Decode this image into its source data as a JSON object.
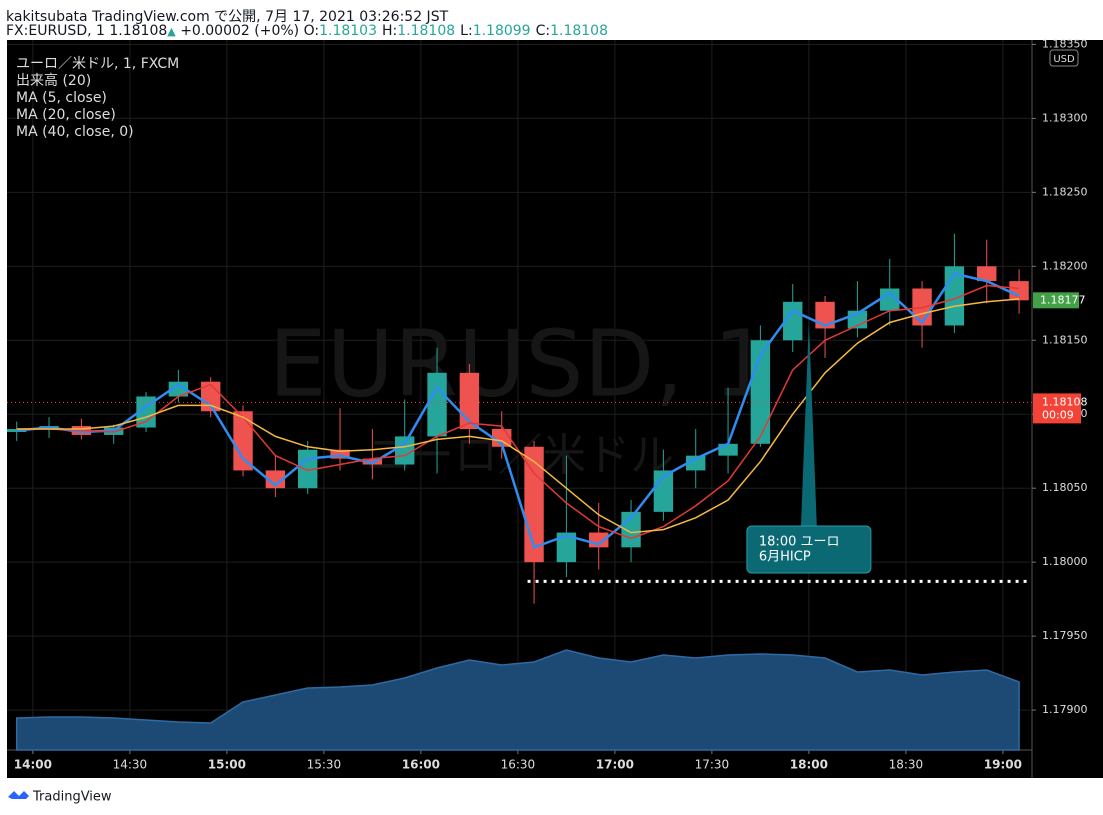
{
  "header": {
    "publisher": "kakitsubata TradingView.com で公開, 7月 17, 2021 03:26:52 JST",
    "symbol": "FX:EURUSD, 1",
    "last": "1.18108",
    "arrow": "▲",
    "change": "+0.00002 (+0%)",
    "ohlc": [
      {
        "key": "O:",
        "value": "1.18103"
      },
      {
        "key": "H:",
        "value": "1.18108"
      },
      {
        "key": "L:",
        "value": "1.18099"
      },
      {
        "key": "C:",
        "value": "1.18108"
      }
    ]
  },
  "footer": {
    "brand": "TradingView"
  },
  "chart_data": {
    "type": "candlestick",
    "legend_title": "ユーロ／米ドル, 1, FXCM",
    "watermark": [
      "EURUSD, 1",
      "ユーロ／米ドル"
    ],
    "currency": "USD",
    "x": [
      "13:55",
      "14:05",
      "14:15",
      "14:25",
      "14:35",
      "14:45",
      "14:55",
      "15:05",
      "15:15",
      "15:25",
      "15:35",
      "15:45",
      "15:55",
      "16:05",
      "16:15",
      "16:25",
      "16:35",
      "16:45",
      "16:55",
      "17:05",
      "17:15",
      "17:25",
      "17:35",
      "17:45",
      "17:55",
      "18:05",
      "18:15",
      "18:25",
      "18:35",
      "18:45",
      "18:55",
      "19:05"
    ],
    "xlim": [
      "13:52",
      "19:09"
    ],
    "xticks": [
      "14:00",
      "14:30",
      "15:00",
      "15:30",
      "16:00",
      "16:30",
      "17:00",
      "17:30",
      "18:00",
      "18:30",
      "19:00"
    ],
    "ylim": [
      1.17873,
      1.18353
    ],
    "yticks": [
      {
        "value": 1.179,
        "label": "1.17900"
      },
      {
        "value": 1.1795,
        "label": "1.17950"
      },
      {
        "value": 1.18,
        "label": "1.18000"
      },
      {
        "value": 1.1805,
        "label": "1.18050"
      },
      {
        "value": 1.181,
        "label": "1.18100"
      },
      {
        "value": 1.1815,
        "label": "1.18150"
      },
      {
        "value": 1.182,
        "label": "1.18200"
      },
      {
        "value": 1.1825,
        "label": "1.18250"
      },
      {
        "value": 1.183,
        "label": "1.18300"
      },
      {
        "value": 1.1835,
        "label": "1.18350"
      }
    ],
    "grid": true,
    "up_color": "#26a69a",
    "down_color": "#ef5350",
    "candles": {
      "open": [
        1.18088,
        1.1809,
        1.18092,
        1.18086,
        1.18091,
        1.18112,
        1.18122,
        1.18102,
        1.18062,
        1.1805,
        1.18076,
        1.1807,
        1.18066,
        1.18085,
        1.18128,
        1.1809,
        1.18078,
        1.18,
        1.1802,
        1.1801,
        1.18034,
        1.18062,
        1.18072,
        1.1808,
        1.1815,
        1.18176,
        1.18158,
        1.1817,
        1.18185,
        1.1816,
        1.182,
        1.1819
      ],
      "high": [
        1.18095,
        1.18098,
        1.18097,
        1.18093,
        1.18115,
        1.1813,
        1.18125,
        1.18106,
        1.18072,
        1.18082,
        1.18104,
        1.1809,
        1.1811,
        1.18145,
        1.18134,
        1.18102,
        1.18082,
        1.18072,
        1.1804,
        1.18042,
        1.18076,
        1.1809,
        1.18118,
        1.1816,
        1.18188,
        1.1818,
        1.1819,
        1.18205,
        1.1819,
        1.18222,
        1.18218,
        1.18198
      ],
      "low": [
        1.18082,
        1.18084,
        1.18083,
        1.1808,
        1.18088,
        1.18108,
        1.18098,
        1.18058,
        1.18044,
        1.18046,
        1.18062,
        1.18056,
        1.18062,
        1.1806,
        1.1808,
        1.1807,
        1.17972,
        1.1799,
        1.17995,
        1.18,
        1.18028,
        1.1805,
        1.1806,
        1.18078,
        1.18142,
        1.18138,
        1.18152,
        1.1816,
        1.18145,
        1.18155,
        1.18175,
        1.18168
      ],
      "close": [
        1.1809,
        1.18092,
        1.18086,
        1.18091,
        1.18112,
        1.18122,
        1.18102,
        1.18062,
        1.1805,
        1.18076,
        1.1807,
        1.18066,
        1.18085,
        1.18128,
        1.1809,
        1.18078,
        1.18,
        1.1802,
        1.1801,
        1.18034,
        1.18062,
        1.18072,
        1.1808,
        1.1815,
        1.18176,
        1.18158,
        1.1817,
        1.18185,
        1.1816,
        1.182,
        1.1819,
        1.18177
      ]
    },
    "volume": {
      "name": "出来高 (20)",
      "color": "#1c4a74",
      "lim": [
        0,
        140
      ],
      "values": [
        32,
        33,
        33,
        32,
        30,
        28,
        27,
        48,
        55,
        62,
        63,
        65,
        72,
        82,
        90,
        85,
        88,
        100,
        92,
        88,
        95,
        92,
        95,
        96,
        95,
        92,
        78,
        80,
        75,
        78,
        80,
        68
      ]
    },
    "series": [
      {
        "name": "MA (5, close)",
        "color": "#2f8cf0",
        "values": [
          1.18089,
          1.18091,
          1.18088,
          1.18089,
          1.18105,
          1.1812,
          1.18106,
          1.1807,
          1.18052,
          1.1807,
          1.18072,
          1.18067,
          1.1808,
          1.18118,
          1.18095,
          1.1808,
          1.1801,
          1.18018,
          1.18012,
          1.1803,
          1.18058,
          1.1807,
          1.1808,
          1.1814,
          1.1817,
          1.1816,
          1.18168,
          1.18182,
          1.18162,
          1.18195,
          1.1819,
          1.1818
        ]
      },
      {
        "name": "MA (20, close)",
        "color": "#e53935",
        "values": [
          1.1809,
          1.1809,
          1.18089,
          1.18088,
          1.18095,
          1.18112,
          1.1812,
          1.18098,
          1.18072,
          1.18062,
          1.18066,
          1.1807,
          1.18072,
          1.18085,
          1.18094,
          1.18092,
          1.1806,
          1.1804,
          1.18024,
          1.18016,
          1.18024,
          1.18038,
          1.18055,
          1.18085,
          1.1813,
          1.1815,
          1.1816,
          1.1817,
          1.18172,
          1.18178,
          1.18187,
          1.18185
        ]
      },
      {
        "name": "MA (40, close, 0)",
        "color": "#f5b942",
        "values": [
          1.1809,
          1.1809,
          1.1809,
          1.18092,
          1.18098,
          1.18106,
          1.18106,
          1.18098,
          1.18085,
          1.18078,
          1.18075,
          1.18076,
          1.18078,
          1.18083,
          1.18085,
          1.18082,
          1.18068,
          1.1805,
          1.18032,
          1.1802,
          1.18022,
          1.1803,
          1.18042,
          1.18068,
          1.181,
          1.18128,
          1.18148,
          1.18162,
          1.18168,
          1.18173,
          1.18176,
          1.18178
        ]
      }
    ],
    "last_price": {
      "value": 1.18177,
      "label": "1.18177",
      "color": "#43a047"
    },
    "price_line": {
      "value": 1.18108,
      "label": "1.18108",
      "countdown": "00:09",
      "color": "#f44336"
    },
    "support_level": {
      "value": 1.17987,
      "from": "16:33"
    },
    "annotation": {
      "x": "18:00",
      "value": 1.18163,
      "lines": [
        "18:00 ユーロ",
        "6月HICP"
      ],
      "color": "#0b6973"
    }
  }
}
